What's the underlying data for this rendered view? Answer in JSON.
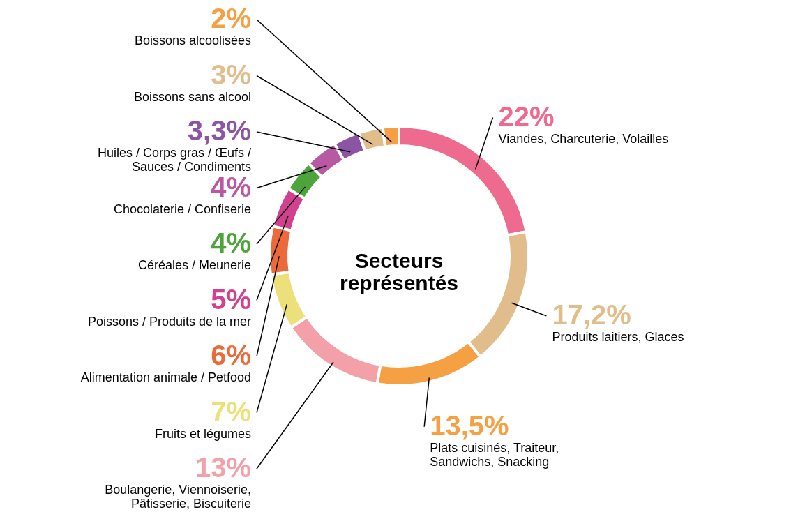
{
  "chart_data": {
    "type": "donut",
    "title": "Secteurs représentés",
    "categories": [
      "Viandes, Charcuterie, Volailles",
      "Produits laitiers, Glaces",
      "Plats cuisinés, Traiteur, Sandwichs, Snacking",
      "Boulangerie, Viennoiserie, Pâtisserie, Biscuiterie",
      "Fruits et légumes",
      "Alimentation animale / Petfood",
      "Poissons / Produits de la mer",
      "Céréales / Meunerie",
      "Chocolaterie / Confiserie",
      "Huiles / Corps gras / Œufs / Sauces / Condiments",
      "Boissons sans alcool",
      "Boissons alcoolisées"
    ],
    "values": [
      22,
      17.2,
      13.5,
      13,
      7,
      6,
      5,
      4,
      4,
      3.3,
      3,
      2
    ],
    "value_labels": [
      "22%",
      "17,2%",
      "13,5%",
      "13%",
      "7%",
      "6%",
      "5%",
      "4%",
      "4%",
      "3,3%",
      "3%",
      "2%"
    ],
    "colors": [
      "#ee6b8f",
      "#e2bd8c",
      "#f5a043",
      "#f4a0a8",
      "#ebe07a",
      "#ec6a3a",
      "#d2418f",
      "#4fa33b",
      "#b85aa3",
      "#8b55a3",
      "#e2bd8c",
      "#f5a043"
    ]
  }
}
